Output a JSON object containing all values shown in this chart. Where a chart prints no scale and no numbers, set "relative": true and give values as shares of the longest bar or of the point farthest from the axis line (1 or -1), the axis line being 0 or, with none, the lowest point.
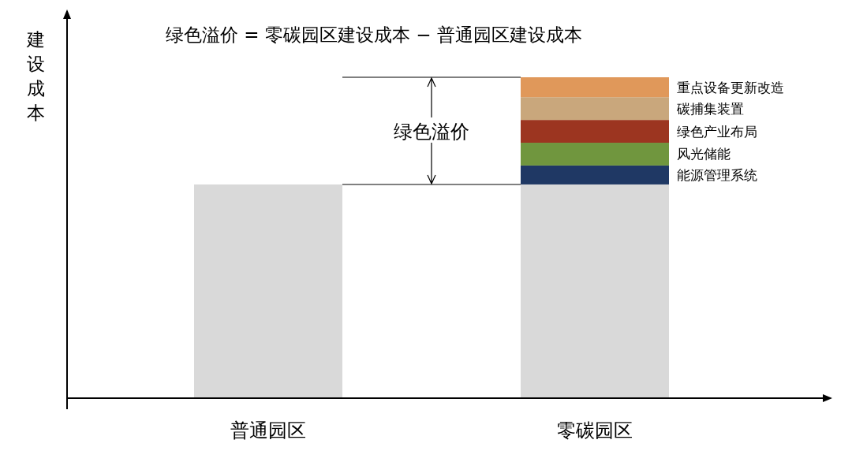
{
  "chart_data": {
    "type": "bar",
    "title": "绿色溢价 = 零碳园区建设成本 − 普通园区建设成本",
    "ylabel": "建设成本",
    "categories": [
      "普通园区",
      "零碳园区"
    ],
    "stacked": true,
    "relative": true,
    "series": [
      {
        "color": "#d9d9d9",
        "values": [
          0.666,
          0.666
        ]
      },
      {
        "name": "能源管理系统",
        "color": "#1f3864",
        "values": [
          null,
          0.059
        ]
      },
      {
        "name": "风光储能",
        "color": "#70963e",
        "values": [
          null,
          0.071
        ]
      },
      {
        "name": "绿色产业布局",
        "color": "#9c3520",
        "values": [
          null,
          0.071
        ]
      },
      {
        "name": "碳捕集装置",
        "color": "#c9a77c",
        "values": [
          null,
          0.071
        ]
      },
      {
        "name": "重点设备更新改造",
        "color": "#e0985a",
        "values": [
          null,
          0.062
        ]
      }
    ],
    "ref_lines": [
      {
        "axis": "y",
        "value": 0.666
      },
      {
        "axis": "y",
        "value": 1
      }
    ],
    "annotations": [
      "绿色溢价"
    ]
  }
}
